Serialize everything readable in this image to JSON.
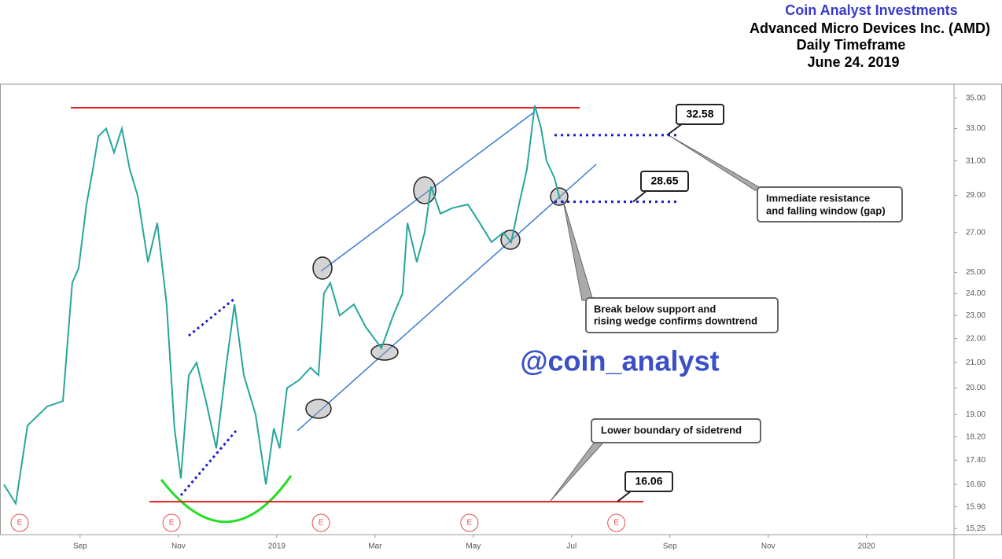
{
  "header": {
    "brand": "Coin Analyst Investments",
    "company": "Advanced Micro Devices Inc. (AMD)",
    "timeframe": "Daily Timeframe",
    "date": "June 24. 2019"
  },
  "chart_data": {
    "type": "line",
    "log_scale": true,
    "grid": false,
    "series": [
      {
        "color": "#26a69a",
        "x": [
          -5.55,
          -5.31,
          -5.07,
          -4.67,
          -4.35,
          -4.16,
          -4.03,
          -3.87,
          -3.74,
          -3.63,
          -3.47,
          -3.31,
          -3.15,
          -2.99,
          -2.83,
          -2.62,
          -2.43,
          -2.24,
          -2.08,
          -1.95,
          -1.79,
          -1.63,
          -1.44,
          -1.23,
          -1.02,
          -0.86,
          -0.67,
          -0.43,
          -0.22,
          -0.06,
          0.06,
          0.21,
          0.45,
          0.69,
          0.85,
          0.96,
          1.09,
          1.28,
          1.57,
          1.81,
          2.13,
          2.37,
          2.56,
          2.66,
          2.85,
          3.01,
          3.14,
          3.33,
          3.57,
          3.89,
          4.13,
          4.37,
          4.61,
          4.77,
          4.93,
          5.09,
          5.25,
          5.38,
          5.49,
          5.65,
          5.76
        ],
        "values": [
          16.6,
          16.0,
          18.6,
          19.3,
          19.5,
          24.5,
          25.2,
          28.5,
          30.5,
          32.5,
          33.0,
          31.5,
          33.0,
          30.5,
          29.0,
          25.5,
          27.5,
          23.5,
          18.5,
          16.8,
          20.5,
          21.0,
          19.5,
          17.8,
          21.0,
          23.5,
          20.5,
          19.0,
          16.6,
          18.5,
          17.8,
          20.0,
          20.3,
          20.8,
          20.5,
          24.0,
          24.5,
          23.0,
          23.5,
          22.5,
          21.6,
          23.0,
          24.0,
          27.5,
          25.5,
          27.0,
          29.5,
          28.0,
          28.3,
          28.5,
          27.5,
          26.5,
          27.0,
          26.5,
          28.5,
          30.5,
          34.5,
          33.0,
          31.0,
          30.0,
          28.8
        ]
      }
    ],
    "xlim": [
      -5.63,
      13.78
    ],
    "xticks": [
      {
        "value": -4,
        "label": "Sep"
      },
      {
        "value": -2,
        "label": "Nov"
      },
      {
        "value": 0,
        "label": "2019"
      },
      {
        "value": 2,
        "label": "Mar"
      },
      {
        "value": 4,
        "label": "May"
      },
      {
        "value": 6,
        "label": "Jul"
      },
      {
        "value": 8,
        "label": "Sep"
      },
      {
        "value": 10,
        "label": "Nov"
      },
      {
        "value": 12,
        "label": "2020"
      }
    ],
    "ylim": [
      15.07,
      35.95
    ],
    "yticks": [
      {
        "value": 35,
        "label": "35.00"
      },
      {
        "value": 33,
        "label": "33.00"
      },
      {
        "value": 31,
        "label": "31.00"
      },
      {
        "value": 29,
        "label": "29.00"
      },
      {
        "value": 27,
        "label": "27.00"
      },
      {
        "value": 25,
        "label": "25.00"
      },
      {
        "value": 24,
        "label": "24.00"
      },
      {
        "value": 23,
        "label": "23.00"
      },
      {
        "value": 22,
        "label": "22.00"
      },
      {
        "value": 21,
        "label": "21.00"
      },
      {
        "value": 20,
        "label": "20.00"
      },
      {
        "value": 19,
        "label": "19.00"
      },
      {
        "value": 18.2,
        "label": "18.20"
      },
      {
        "value": 17.4,
        "label": "17.40"
      },
      {
        "value": 16.6,
        "label": "16.60"
      },
      {
        "value": 15.9,
        "label": "15.90"
      },
      {
        "value": 15.25,
        "label": "15.25"
      }
    ],
    "levels": [
      {
        "value": 32.58,
        "color": "#1c1ccf"
      },
      {
        "value": 28.65,
        "color": "#1c1ccf"
      },
      {
        "value": 16.06,
        "color": "#e01e1e"
      }
    ],
    "earnings": {
      "label": "E",
      "x": [
        -5.23,
        -2.14,
        0.9,
        3.92,
        6.91
      ]
    },
    "annotations": {
      "resistance": [
        "Immediate resistance",
        "and falling window (gap)"
      ],
      "breakdown": [
        "Break below support and",
        "rising wedge confirms downtrend"
      ],
      "lower": "Lower boundary of sidetrend",
      "watermark": "@coin_analyst"
    }
  }
}
